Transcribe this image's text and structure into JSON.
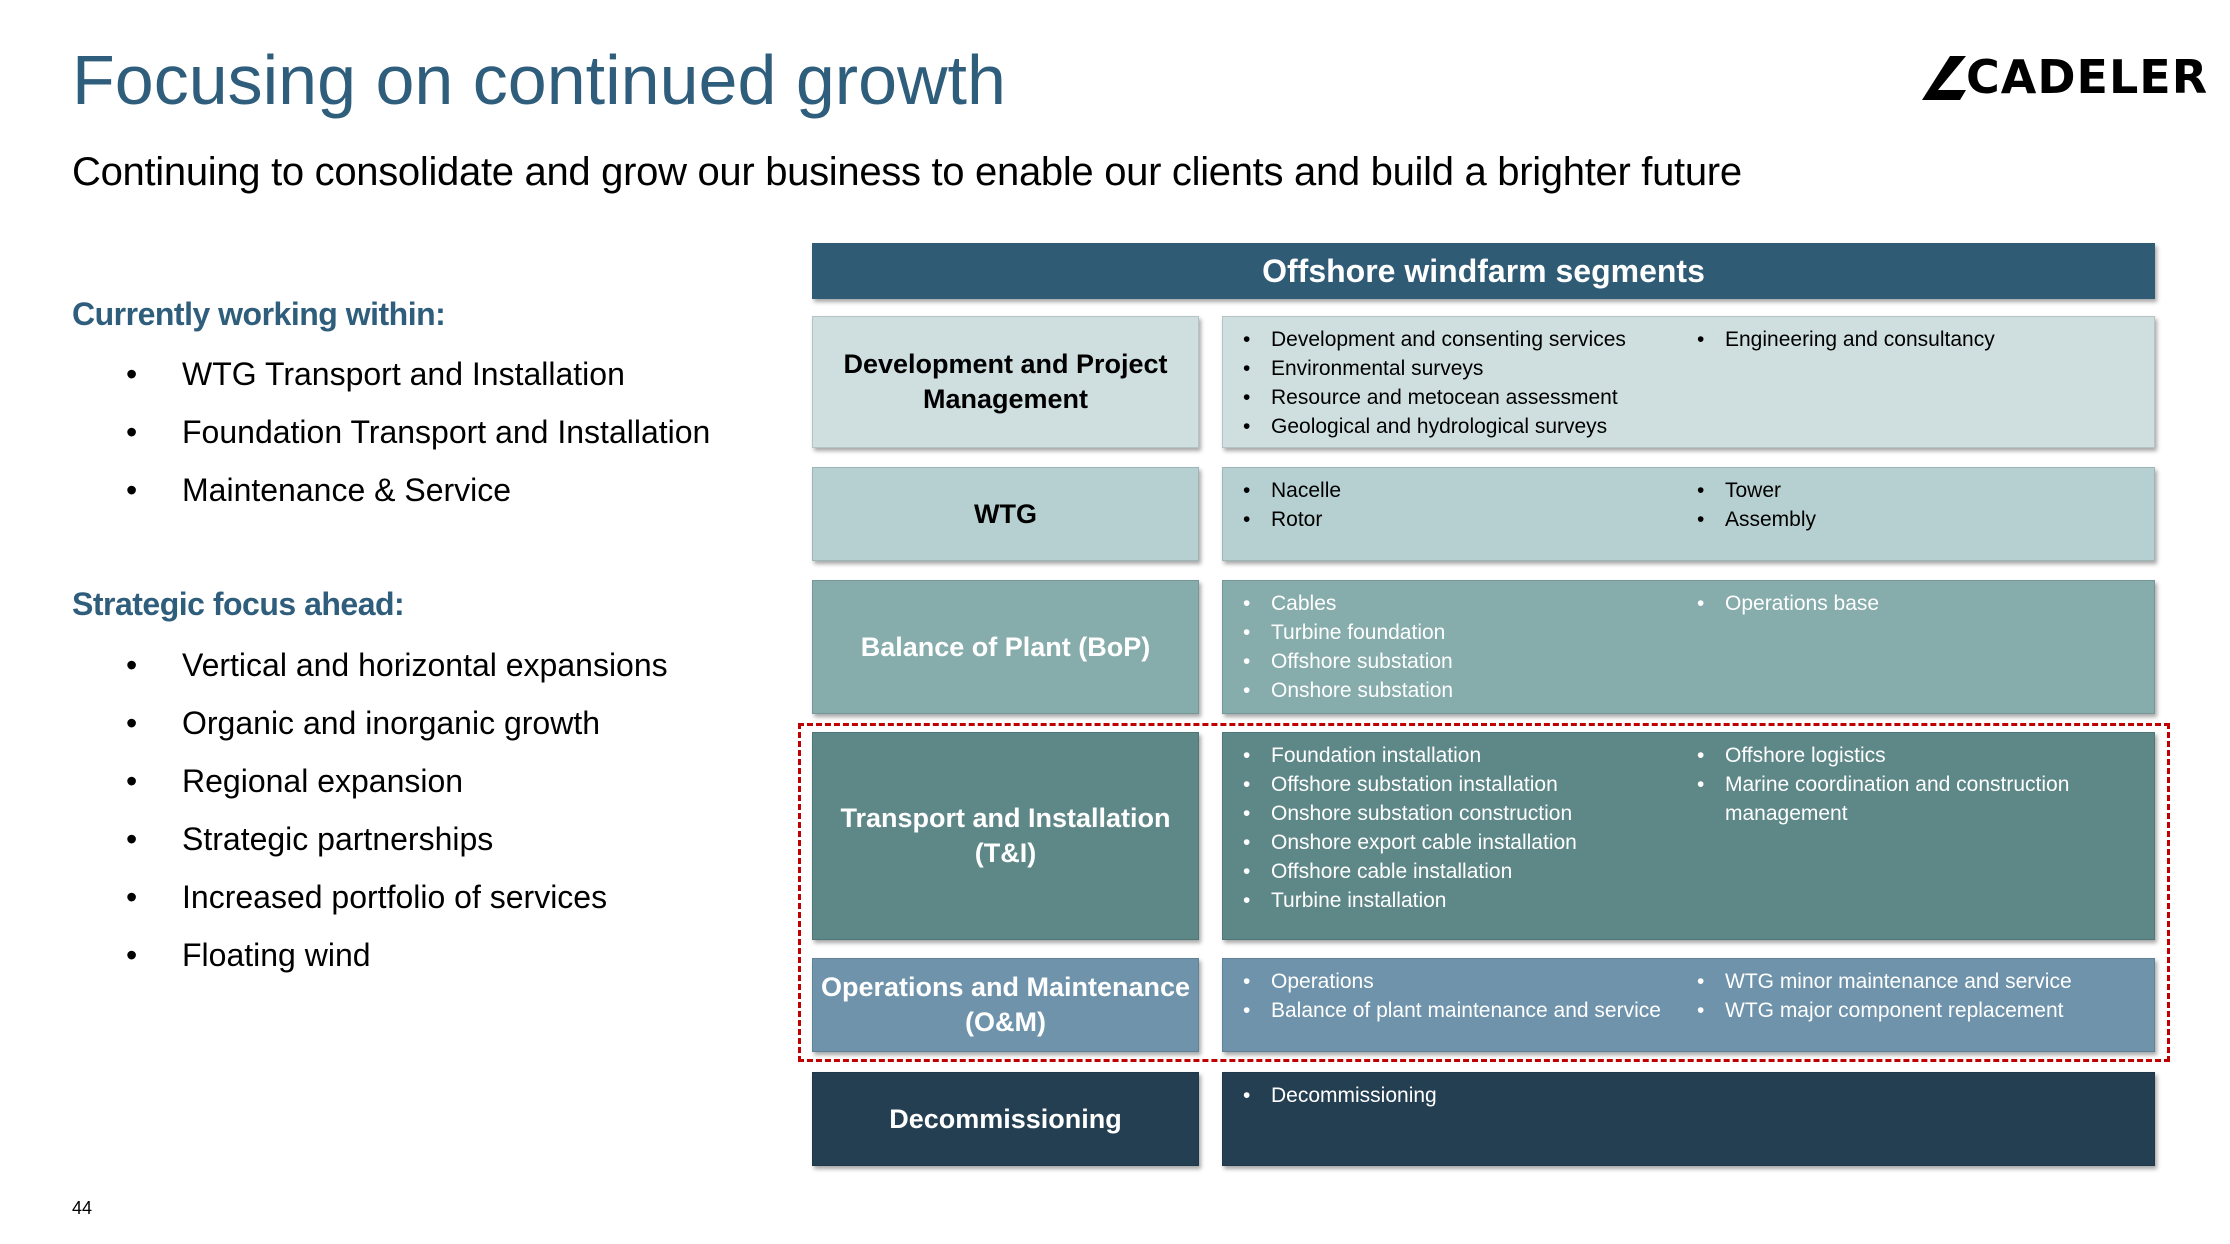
{
  "title": "Focusing on continued growth",
  "subtitle": "Continuing to consolidate and grow our business to enable our clients and build a brighter future",
  "logo": {
    "text": "CADELER"
  },
  "left": {
    "current_heading": "Currently working within:",
    "current_items": [
      "WTG Transport and Installation",
      "Foundation Transport and Installation",
      "Maintenance & Service"
    ],
    "strategic_heading": "Strategic focus ahead:",
    "strategic_items": [
      "Vertical and horizontal expansions",
      "Organic and inorganic growth",
      "Regional expansion",
      "Strategic partnerships",
      "Increased portfolio of services",
      "Floating wind"
    ]
  },
  "segments": {
    "header": "Offshore windfarm segments",
    "rows": [
      {
        "label": "Development and Project Management",
        "col1": [
          "Development and consenting services",
          "Environmental surveys",
          "Resource and metocean assessment",
          "Geological and hydrological surveys"
        ],
        "col2": [
          "Engineering and consultancy"
        ],
        "label_bg": "#cfdfe0",
        "detail_bg": "#cfdfe0"
      },
      {
        "label": "WTG",
        "col1": [
          "Nacelle",
          "Rotor"
        ],
        "col2": [
          "Tower",
          "Assembly"
        ],
        "label_bg": "#b6cfd0",
        "detail_bg": "#b6cfd0"
      },
      {
        "label": "Balance of Plant (BoP)",
        "col1": [
          "Cables",
          "Turbine foundation",
          "Offshore substation",
          "Onshore substation"
        ],
        "col2": [
          "Operations base"
        ],
        "label_bg": "#86acac",
        "detail_bg": "#86acac"
      },
      {
        "label": "Transport and Installation (T&I)",
        "col1": [
          "Foundation installation",
          "Offshore substation installation",
          "Onshore substation construction",
          "Onshore export cable installation",
          "Offshore cable installation",
          "Turbine installation"
        ],
        "col2": [
          "Offshore logistics",
          "Marine coordination and construction management"
        ],
        "label_bg": "#5e8787",
        "detail_bg": "#5e8787"
      },
      {
        "label": "Operations and Maintenance (O&M)",
        "col1": [
          "Operations",
          "Balance of plant maintenance and service"
        ],
        "col2": [
          "WTG minor maintenance and service",
          "WTG major component replacement"
        ],
        "label_bg": "#6e93ab",
        "detail_bg": "#6e93ab"
      },
      {
        "label": "Decommissioning",
        "col1": [
          "Decommissioning"
        ],
        "col2": [],
        "label_bg": "#243f52",
        "detail_bg": "#243f52"
      }
    ]
  },
  "page_number": "44"
}
